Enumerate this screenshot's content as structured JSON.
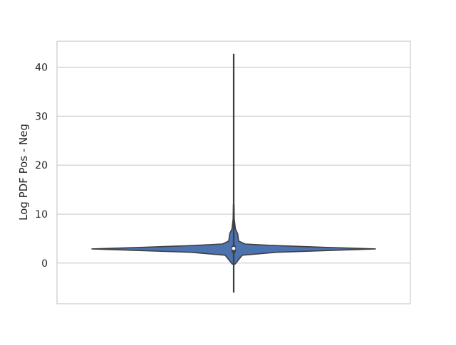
{
  "chart_data": {
    "type": "violin",
    "title": "",
    "xlabel": "",
    "ylabel": "Log PDF Pos - Neg",
    "ylim": [
      -8.3,
      45.3
    ],
    "yticks": [
      0,
      10,
      20,
      30,
      40
    ],
    "grid": "horizontal",
    "legend": "none",
    "series": [
      {
        "color": "#4c72b0",
        "whisker_min": -5.9,
        "whisker_max": 42.6,
        "q1": 2.1,
        "q3": 3.6,
        "median": 3.0,
        "density_profile": [
          {
            "y": -0.2,
            "w": 0.01
          },
          {
            "y": 1.6,
            "w": 0.06
          },
          {
            "y": 2.2,
            "w": 0.3
          },
          {
            "y": 2.6,
            "w": 0.7
          },
          {
            "y": 2.9,
            "w": 1.0
          },
          {
            "y": 3.2,
            "w": 0.66
          },
          {
            "y": 3.6,
            "w": 0.28
          },
          {
            "y": 3.9,
            "w": 0.08
          },
          {
            "y": 4.5,
            "w": 0.035
          },
          {
            "y": 6.0,
            "w": 0.028
          },
          {
            "y": 7.0,
            "w": 0.012
          },
          {
            "y": 9.0,
            "w": 0.004
          },
          {
            "y": 12.0,
            "w": 0.002
          }
        ]
      }
    ]
  }
}
